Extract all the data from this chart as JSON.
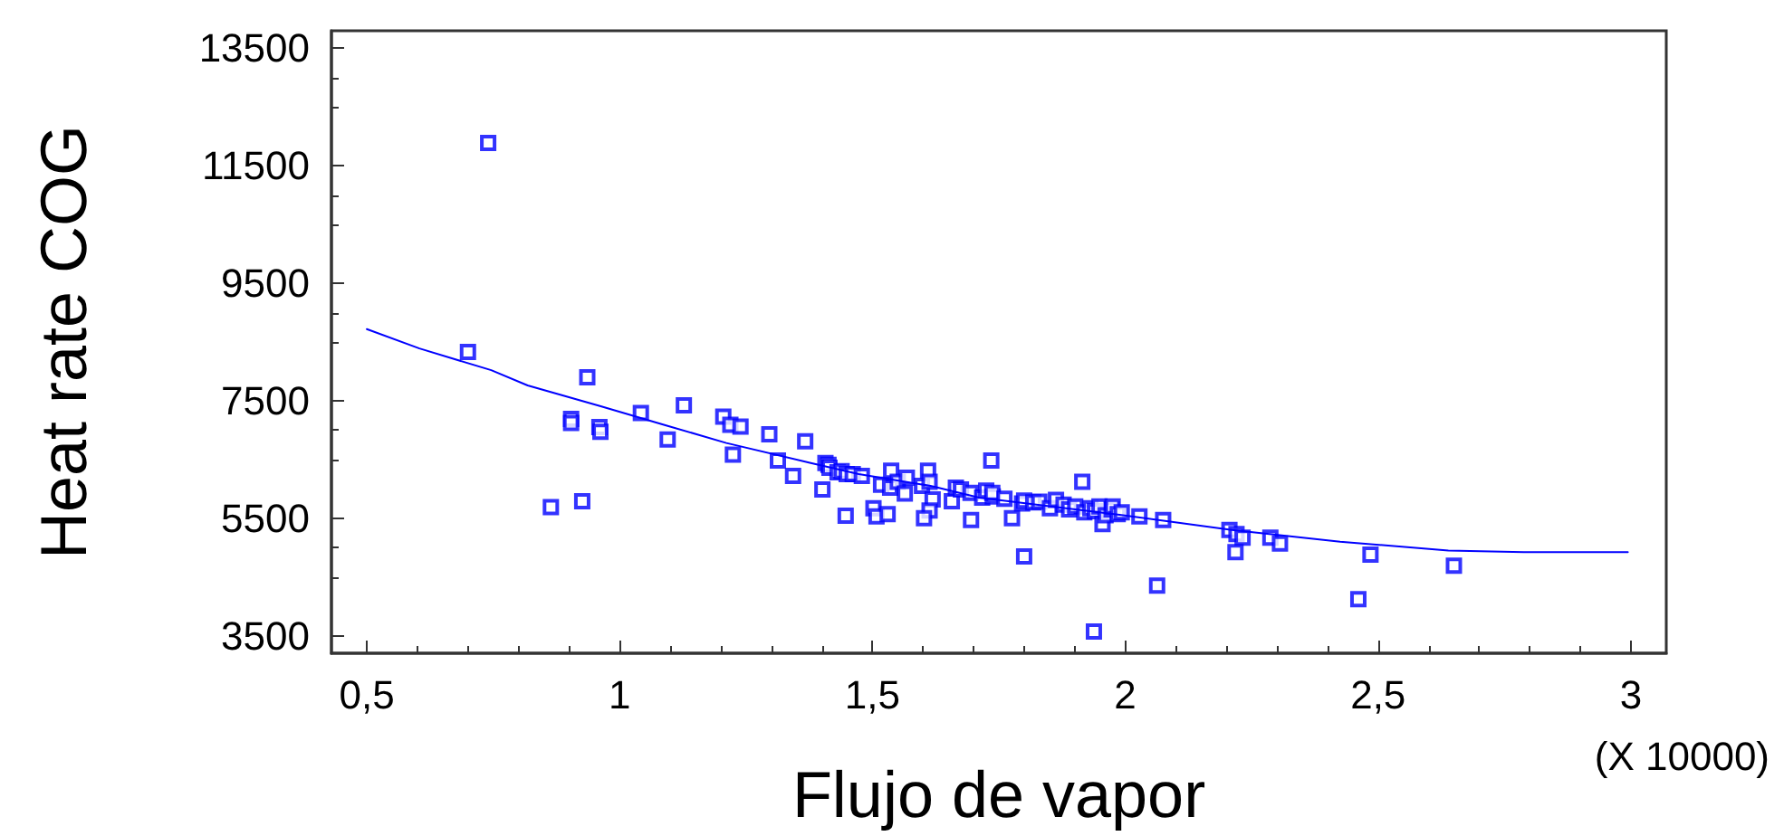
{
  "chart_data": {
    "type": "scatter",
    "xlabel": "Flujo de vapor",
    "ylabel": "Heat rate COG",
    "annotations": [
      "(X 10000)"
    ],
    "xlim": [
      0.43,
      3.07
    ],
    "ylim": [
      3200,
      13800
    ],
    "xticks": [
      {
        "value": 0.5,
        "label": "0,5"
      },
      1,
      {
        "value": 1.5,
        "label": "1,5"
      },
      2,
      {
        "value": 2.5,
        "label": "2,5"
      },
      3
    ],
    "yticks": [
      3500,
      5500,
      7500,
      9500,
      11500,
      13500
    ],
    "grid": false,
    "marker": "square",
    "series": [
      {
        "color": "#0000ff",
        "x": [
          0.7,
          0.74,
          0.936,
          0.904,
          0.904,
          0.96,
          0.962,
          0.864,
          0.926,
          1.042,
          1.095,
          1.127,
          1.205,
          1.219,
          1.239,
          1.224,
          1.296,
          1.313,
          1.367,
          1.343,
          1.401,
          1.407,
          1.413,
          1.415,
          1.431,
          1.439,
          1.449,
          1.461,
          1.479,
          1.447,
          1.502,
          1.508,
          1.53,
          1.517,
          1.535,
          1.537,
          1.55,
          1.564,
          1.568,
          1.598,
          1.61,
          1.613,
          1.619,
          1.613,
          1.602,
          1.657,
          1.665,
          1.675,
          1.694,
          1.695,
          1.717,
          1.725,
          1.735,
          1.738,
          1.737,
          1.761,
          1.776,
          1.8,
          1.796,
          1.8,
          1.818,
          1.83,
          1.851,
          1.863,
          1.878,
          1.889,
          1.901,
          1.915,
          1.919,
          1.931,
          1.94,
          1.949,
          1.955,
          1.961,
          1.973,
          1.975,
          1.985,
          1.993,
          2.028,
          2.075,
          1.938,
          2.063,
          2.206,
          2.22,
          2.232,
          2.218,
          2.287,
          2.306,
          2.485,
          2.461,
          2.65
        ],
        "values": [
          8330,
          11890,
          7900,
          7190,
          7120,
          7050,
          6970,
          5690,
          5790,
          7290,
          6840,
          7420,
          7230,
          7090,
          7060,
          6580,
          6930,
          6480,
          6810,
          6220,
          5990,
          6440,
          6410,
          6360,
          6280,
          6300,
          6250,
          6250,
          6220,
          5540,
          5670,
          5530,
          5570,
          6070,
          6020,
          6310,
          6120,
          5920,
          6190,
          6050,
          6310,
          6120,
          5820,
          5630,
          5500,
          5790,
          6020,
          5990,
          5930,
          5470,
          5850,
          5970,
          6480,
          5870,
          5930,
          5830,
          5500,
          4850,
          5750,
          5800,
          5770,
          5780,
          5670,
          5810,
          5730,
          5650,
          5700,
          6120,
          5600,
          5670,
          5620,
          5700,
          5400,
          5550,
          5650,
          5700,
          5570,
          5600,
          5530,
          5470,
          3570,
          4350,
          5300,
          5230,
          5170,
          4920,
          5170,
          5070,
          4880,
          4120,
          4690
        ]
      },
      {
        "type": "line",
        "color": "#0000ff",
        "marker": "none",
        "line_style": "solid",
        "x": [
          0.5,
          0.604,
          0.746,
          0.818,
          0.961,
          1.092,
          1.211,
          1.378,
          1.473,
          1.615,
          1.711,
          1.996,
          2.211,
          2.425,
          2.639,
          2.788,
          2.994
        ],
        "values": [
          8720,
          8390,
          8020,
          7760,
          7410,
          7080,
          6780,
          6440,
          6250,
          6050,
          5850,
          5550,
          5300,
          5100,
          4950,
          4920,
          4920
        ]
      }
    ]
  }
}
